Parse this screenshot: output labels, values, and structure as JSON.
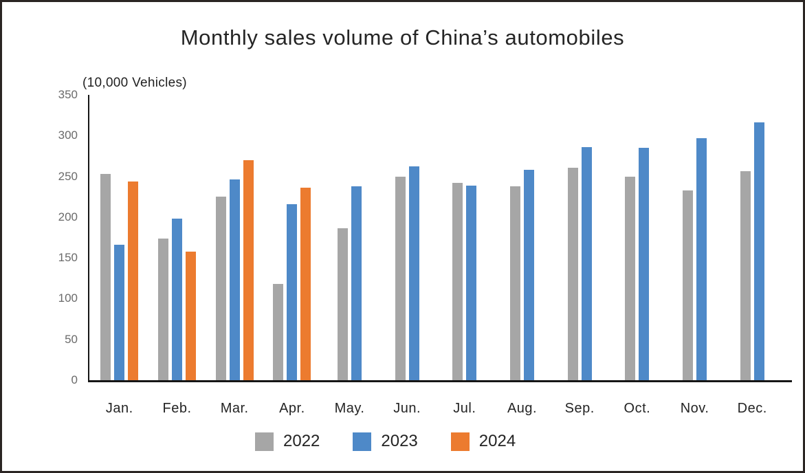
{
  "chart_data": {
    "type": "bar",
    "title": "Monthly sales volume of China’s automobiles",
    "ylabel": "(10,000 Vehicles)",
    "categories": [
      "Jan.",
      "Feb.",
      "Mar.",
      "Apr.",
      "May.",
      "Jun.",
      "Jul.",
      "Aug.",
      "Sep.",
      "Oct.",
      "Nov.",
      "Dec."
    ],
    "series": [
      {
        "name": "2022",
        "color": "#a6a6a6",
        "values": [
          253,
          174,
          225,
          118,
          186,
          250,
          242,
          238,
          261,
          250,
          233,
          256
        ]
      },
      {
        "name": "2023",
        "color": "#4e89c8",
        "values": [
          166,
          198,
          246,
          216,
          238,
          262,
          239,
          258,
          286,
          285,
          297,
          316
        ]
      },
      {
        "name": "2024",
        "color": "#ec7b2f",
        "values": [
          244,
          158,
          270,
          236,
          null,
          null,
          null,
          null,
          null,
          null,
          null,
          null
        ]
      }
    ],
    "ylim": [
      0,
      350
    ],
    "yticks": [
      0,
      50,
      100,
      150,
      200,
      250,
      300,
      350
    ],
    "grid": false,
    "legend_position": "bottom",
    "axis_color": "#161616"
  }
}
